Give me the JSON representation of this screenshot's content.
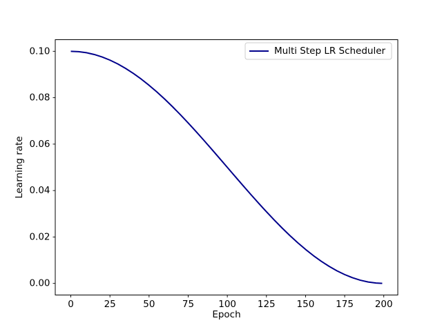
{
  "window": {
    "background": "#ffffff"
  },
  "chart_data": {
    "type": "line",
    "title": "",
    "xlabel": "Epoch",
    "ylabel": "Learning rate",
    "xlim": [
      -9.95,
      208.95
    ],
    "ylim": [
      -0.005,
      0.105
    ],
    "grid": false,
    "axis_color": "#000000",
    "tick_length": 3.5,
    "xticks": {
      "values": [
        0,
        25,
        50,
        75,
        100,
        125,
        150,
        175,
        200
      ],
      "labels": [
        "0",
        "25",
        "50",
        "75",
        "100",
        "125",
        "150",
        "175",
        "200"
      ]
    },
    "yticks": {
      "values": [
        0.0,
        0.02,
        0.04,
        0.06,
        0.08,
        0.1
      ],
      "labels": [
        "0.00",
        "0.02",
        "0.04",
        "0.06",
        "0.08",
        "0.10"
      ]
    },
    "legend": {
      "position": "upper right",
      "background": "#ffffff",
      "border_color": "#cccccc",
      "entries": [
        {
          "label": "Multi Step LR Scheduler",
          "color": "#00008b"
        }
      ]
    },
    "series": [
      {
        "name": "Multi Step LR Scheduler",
        "color": "#00008b",
        "line_width": 2,
        "x": [
          0,
          5,
          10,
          15,
          20,
          25,
          30,
          35,
          40,
          45,
          50,
          55,
          60,
          65,
          70,
          75,
          80,
          85,
          90,
          95,
          100,
          105,
          110,
          115,
          120,
          125,
          130,
          135,
          140,
          145,
          150,
          155,
          160,
          165,
          170,
          175,
          180,
          185,
          190,
          195,
          199
        ],
        "y": [
          0.1,
          0.099846,
          0.099384,
          0.098618,
          0.097553,
          0.096194,
          0.09455,
          0.092632,
          0.090451,
          0.08802,
          0.085355,
          0.082472,
          0.079389,
          0.076125,
          0.072699,
          0.069134,
          0.065451,
          0.061672,
          0.057822,
          0.053923,
          0.05,
          0.046077,
          0.042178,
          0.038328,
          0.034549,
          0.030866,
          0.027301,
          0.023875,
          0.020611,
          0.017528,
          0.014645,
          0.01198,
          0.009549,
          0.007368,
          0.00545,
          0.003806,
          0.002447,
          0.001381,
          0.000616,
          0.000154,
          6e-06
        ]
      }
    ]
  }
}
